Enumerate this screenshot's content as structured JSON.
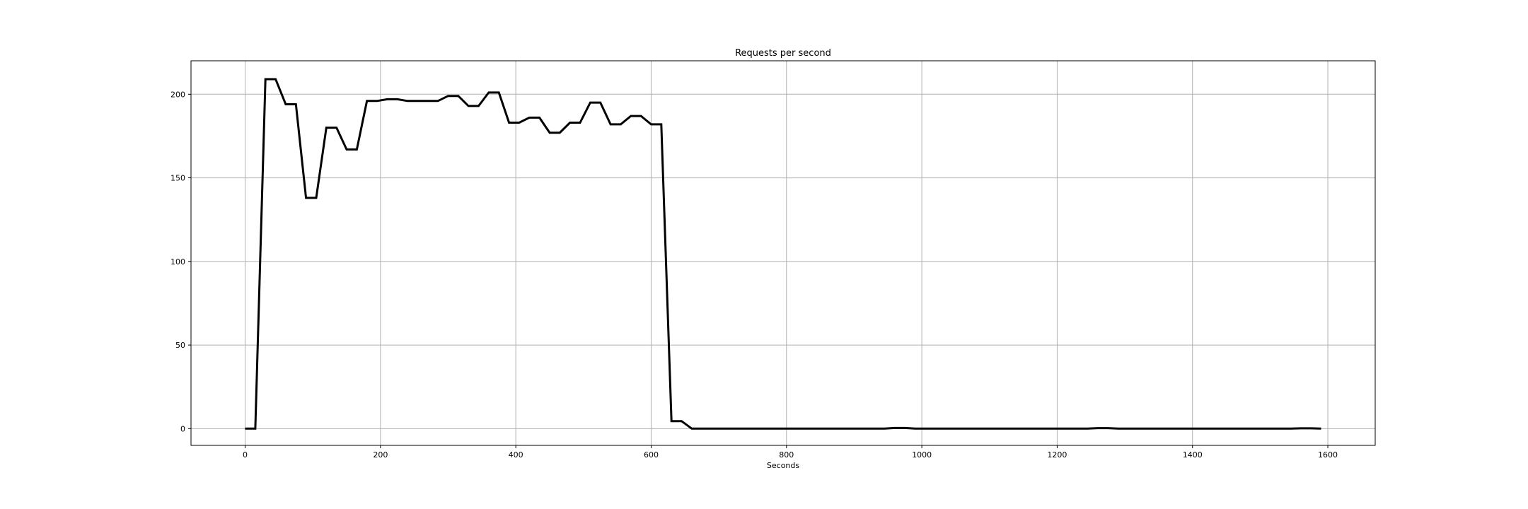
{
  "chart_data": {
    "type": "line",
    "title": "Requests per second",
    "xlabel": "Seconds",
    "ylabel": "",
    "xlim": [
      -80,
      1670
    ],
    "ylim": [
      -10,
      220
    ],
    "xticks": [
      0,
      200,
      400,
      600,
      800,
      1000,
      1200,
      1400,
      1600
    ],
    "yticks": [
      0,
      50,
      100,
      150,
      200
    ],
    "grid": true,
    "line_color": "#000000",
    "series": [
      {
        "x": [
          0,
          15,
          30,
          45,
          60,
          75,
          90,
          105,
          120,
          135,
          150,
          165,
          180,
          195,
          210,
          225,
          240,
          255,
          270,
          285,
          300,
          315,
          330,
          345,
          360,
          375,
          390,
          405,
          420,
          435,
          450,
          465,
          480,
          495,
          510,
          525,
          540,
          555,
          570,
          585,
          600,
          615,
          630,
          645,
          660,
          675,
          690,
          705,
          720,
          735,
          750,
          765,
          780,
          795,
          810,
          825,
          840,
          855,
          870,
          885,
          900,
          915,
          930,
          945,
          960,
          975,
          990,
          1005,
          1020,
          1035,
          1050,
          1065,
          1080,
          1095,
          1110,
          1125,
          1140,
          1155,
          1170,
          1185,
          1200,
          1215,
          1230,
          1245,
          1260,
          1275,
          1290,
          1305,
          1320,
          1335,
          1350,
          1365,
          1380,
          1395,
          1410,
          1425,
          1440,
          1455,
          1470,
          1485,
          1500,
          1515,
          1530,
          1545,
          1560,
          1575,
          1590
        ],
        "values": [
          0,
          0,
          209,
          209,
          194,
          194,
          138,
          138,
          180,
          180,
          167,
          167,
          196,
          196,
          197,
          197,
          196,
          196,
          196,
          196,
          199,
          199,
          193,
          193,
          201,
          201,
          183,
          183,
          186,
          186,
          177,
          177,
          183,
          183,
          195,
          195,
          182,
          182,
          187,
          187,
          182,
          182,
          4.5,
          4.5,
          0,
          0,
          0,
          0,
          0,
          0,
          0,
          0,
          0,
          0,
          0,
          0,
          0,
          0,
          0,
          0,
          0,
          0,
          0,
          0,
          0.4,
          0.4,
          0,
          0,
          0,
          0,
          0,
          0,
          0,
          0,
          0,
          0,
          0,
          0,
          0,
          0,
          0,
          0,
          0,
          0,
          0.3,
          0.3,
          0,
          0,
          0,
          0,
          0,
          0,
          0,
          0,
          0,
          0,
          0,
          0,
          0,
          0,
          0,
          0,
          0,
          0,
          0.2,
          0.2,
          0
        ]
      }
    ]
  }
}
